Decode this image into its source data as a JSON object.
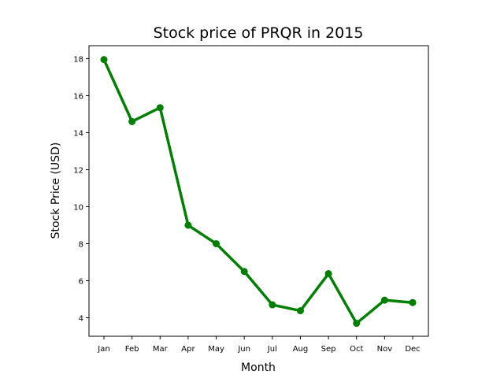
{
  "chart_data": {
    "type": "line",
    "title": "Stock price of PRQR in 2015",
    "xlabel": "Month",
    "ylabel": "Stock Price (USD)",
    "categories": [
      "Jan",
      "Feb",
      "Mar",
      "Apr",
      "May",
      "Jun",
      "Jul",
      "Aug",
      "Sep",
      "Oct",
      "Nov",
      "Dec"
    ],
    "values": [
      17.95,
      14.6,
      15.35,
      9.0,
      8.0,
      6.5,
      4.7,
      4.38,
      6.38,
      3.7,
      4.95,
      4.82
    ],
    "ylim": [
      3.0,
      18.7
    ],
    "yticks": [
      4,
      6,
      8,
      10,
      12,
      14,
      16,
      18
    ],
    "line_color": "#008000",
    "grid": false,
    "legend": false
  }
}
